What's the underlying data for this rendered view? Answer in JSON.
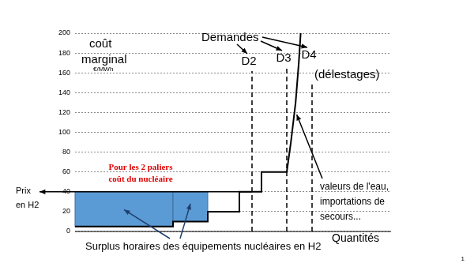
{
  "chart_data": {
    "type": "line",
    "y_label": [
      "coût",
      "marginal"
    ],
    "y_unit": "€/MWh",
    "x_label": "Quantités",
    "xlim": [
      0,
      100
    ],
    "ylim": [
      0,
      200
    ],
    "yticks": [
      0,
      20,
      40,
      60,
      80,
      100,
      120,
      140,
      160,
      180,
      200
    ],
    "grid": true,
    "tick_labels": "y",
    "series": [
      {
        "color": "#000000",
        "line_style": "solid",
        "x": [
          0,
          31,
          31,
          42,
          42,
          52,
          52,
          59,
          59,
          67,
          67,
          68.3,
          69.8,
          70.8,
          71.4
        ],
        "values": [
          5,
          5,
          10,
          10,
          20,
          20,
          40,
          40,
          60,
          60,
          60,
          90,
          130,
          170,
          200
        ]
      }
    ],
    "demands": {
      "label": "Demandes",
      "line_style": "dashed",
      "items": [
        {
          "label": "D2",
          "x": 56
        },
        {
          "label": "D3",
          "x": 67
        },
        {
          "label": "D4",
          "x": 75,
          "note": "(délestages)"
        }
      ]
    },
    "price": {
      "label": [
        "Prix",
        "en H2"
      ],
      "value": 40
    },
    "surplus": {
      "label": "Surplus horaires des équipements nucléaires en H2",
      "color": "#5b9bd5",
      "blocks": [
        {
          "xlim": [
            0,
            31
          ],
          "cost": 5
        },
        {
          "xlim": [
            31,
            42
          ],
          "cost": 10
        }
      ]
    },
    "nuclear_note": {
      "text": [
        "Pour les 2 paliers",
        "coût du nucléaire"
      ],
      "color": "#e00000"
    },
    "curve_note": [
      "valeurs de l'eau,",
      "importations de",
      "secours..."
    ],
    "page_number": 1
  }
}
